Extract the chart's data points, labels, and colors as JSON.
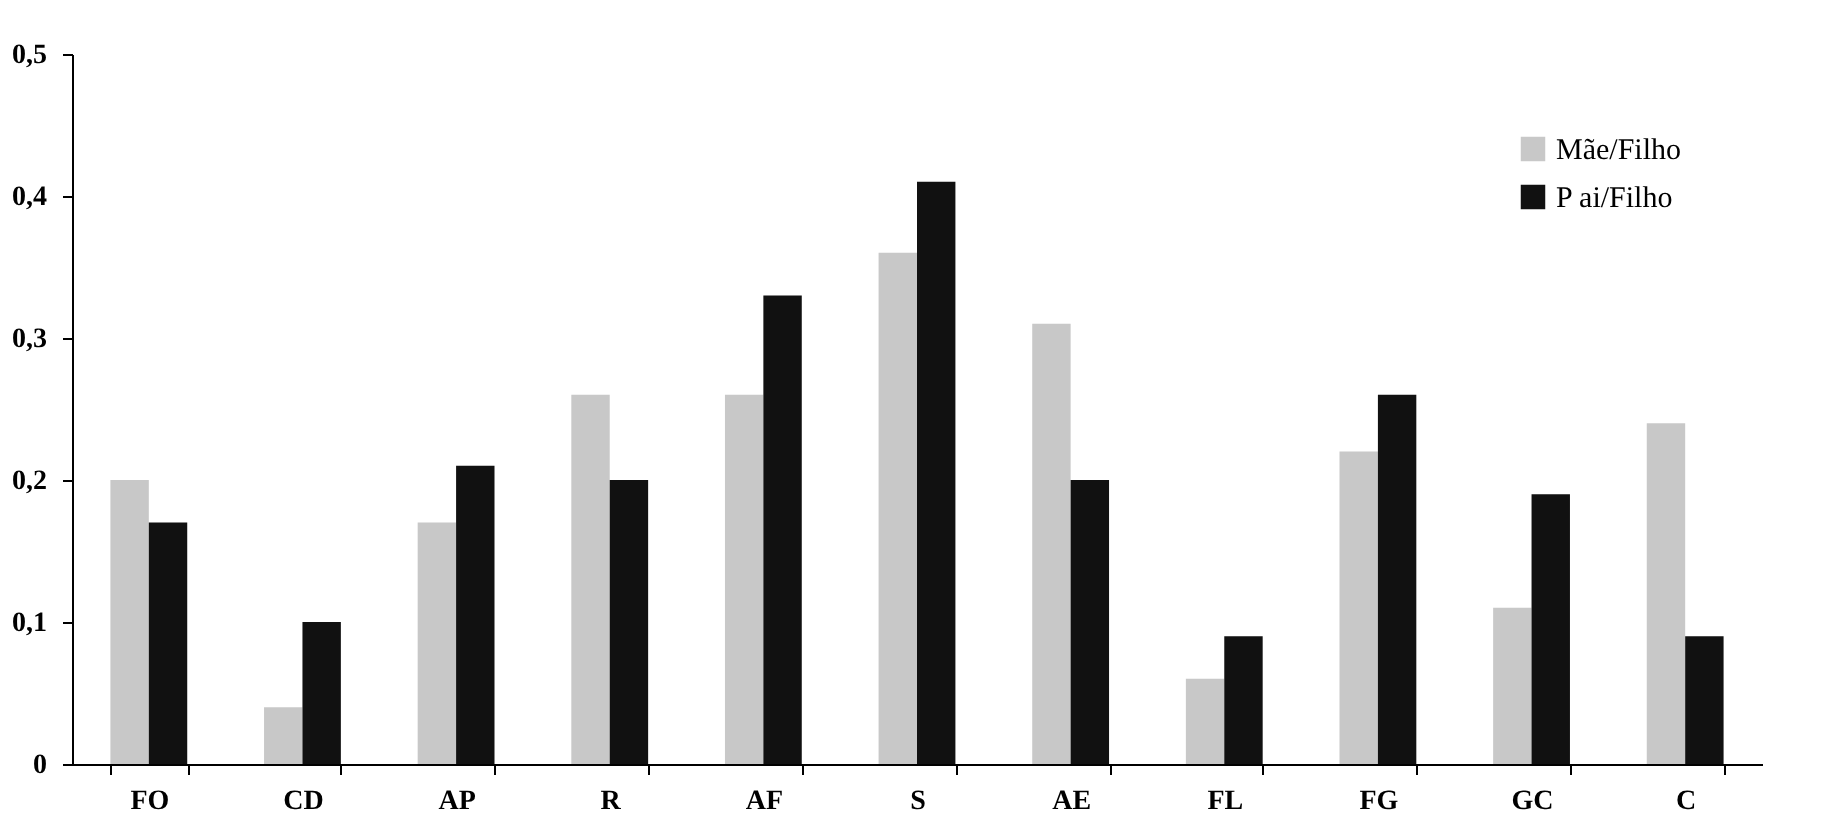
{
  "chart_data": {
    "type": "bar",
    "categories": [
      "FO",
      "CD",
      "AP",
      "R",
      "AF",
      "S",
      "AE",
      "FL",
      "FG",
      "GC",
      "C"
    ],
    "series": [
      {
        "name": "Mãe/Filho",
        "color": "#c8c8c8",
        "values": [
          0.2,
          0.04,
          0.17,
          0.26,
          0.26,
          0.36,
          0.31,
          0.06,
          0.22,
          0.11,
          0.24
        ]
      },
      {
        "name": "P ai/Filho",
        "color": "#111111",
        "values": [
          0.17,
          0.1,
          0.21,
          0.2,
          0.33,
          0.41,
          0.2,
          0.09,
          0.26,
          0.19,
          0.09
        ]
      }
    ],
    "ylim": [
      0,
      0.5
    ],
    "yticks": [
      {
        "value": 0,
        "label": "0"
      },
      {
        "value": 0.1,
        "label": "0,1"
      },
      {
        "value": 0.2,
        "label": "0,2"
      },
      {
        "value": 0.3,
        "label": "0,3"
      },
      {
        "value": 0.4,
        "label": "0,4"
      },
      {
        "value": 0.5,
        "label": "0,5"
      }
    ],
    "grid": false,
    "legend": "top right"
  }
}
